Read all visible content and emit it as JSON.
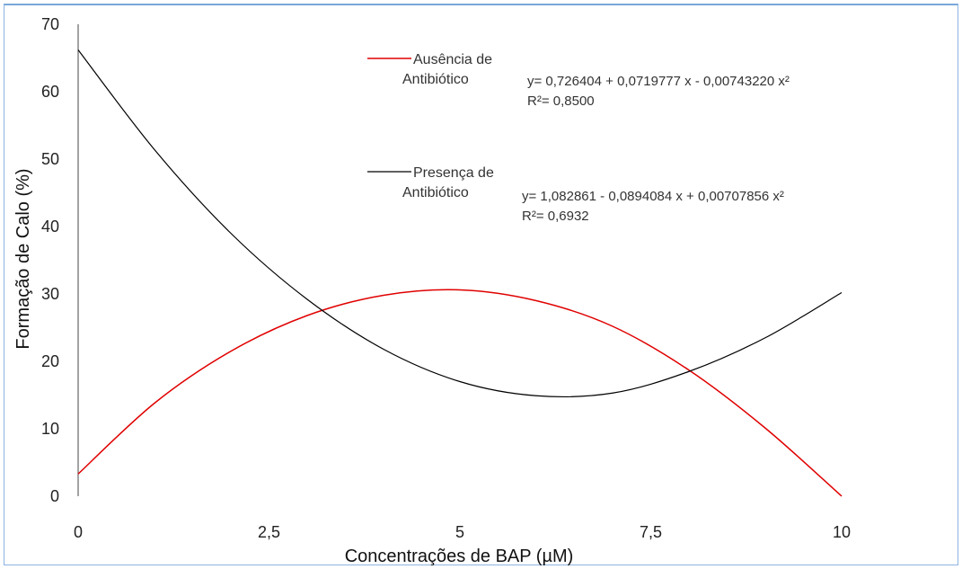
{
  "chart_data": {
    "type": "line",
    "xlabel": "Concentrações de BAP (µM)",
    "ylabel": "Formação de Calo (%)",
    "xlim": [
      0,
      10
    ],
    "ylim": [
      0,
      70
    ],
    "x_ticks": [
      "0",
      "2,5",
      "5",
      "7,5",
      "10"
    ],
    "y_ticks": [
      "0",
      "10",
      "20",
      "30",
      "40",
      "50",
      "60",
      "70"
    ],
    "grid": false,
    "legend_position": "top-center",
    "series": [
      {
        "name": "Ausência de Antibiótico",
        "name_lines": [
          "Ausência de",
          "Antibiótico"
        ],
        "color": "#e00000",
        "x": [
          0,
          1,
          2,
          3,
          4,
          5,
          6,
          7,
          8,
          9,
          10
        ],
        "y": [
          3.3,
          13.8,
          21.5,
          26.8,
          29.8,
          30.6,
          29.0,
          25.2,
          18.7,
          10.1,
          0
        ]
      },
      {
        "name": "Presença de Antibiótico",
        "name_lines": [
          "Presença de",
          "Antibiótico"
        ],
        "color": "#000000",
        "x": [
          0,
          1,
          2,
          3,
          4,
          5,
          6,
          7,
          8,
          9,
          10
        ],
        "y": [
          66.2,
          51.4,
          39.0,
          29.2,
          21.8,
          17.0,
          14.9,
          15.3,
          18.5,
          23.5,
          30.2
        ]
      }
    ],
    "annotations": [
      {
        "lines": [
          "y= 0,726404 + 0,0719777  x - 0,00743220  x²",
          "R²= 0,8500"
        ]
      },
      {
        "lines": [
          "y= 1,082861 - 0,0894084  x + 0,00707856  x²",
          "R²= 0,6932"
        ]
      }
    ]
  }
}
